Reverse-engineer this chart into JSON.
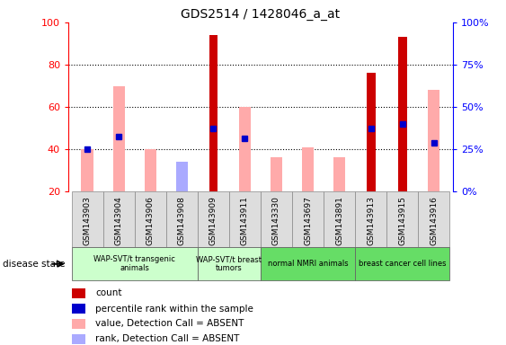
{
  "title": "GDS2514 / 1428046_a_at",
  "samples": [
    "GSM143903",
    "GSM143904",
    "GSM143906",
    "GSM143908",
    "GSM143909",
    "GSM143911",
    "GSM143330",
    "GSM143697",
    "GSM143891",
    "GSM143913",
    "GSM143915",
    "GSM143916"
  ],
  "count": [
    0,
    0,
    0,
    0,
    94,
    0,
    0,
    0,
    0,
    76,
    93,
    0
  ],
  "percentile_rank": [
    40,
    46,
    0,
    0,
    50,
    45,
    0,
    0,
    0,
    50,
    52,
    43
  ],
  "value_absent": [
    40,
    70,
    40,
    21,
    0,
    60,
    36,
    41,
    36,
    0,
    0,
    68
  ],
  "rank_absent": [
    0,
    0,
    0,
    34,
    0,
    0,
    0,
    0,
    0,
    0,
    0,
    0
  ],
  "groups": [
    {
      "label": "WAP-SVT/t transgenic\nanimals",
      "start": 0,
      "end": 4
    },
    {
      "label": "WAP-SVT/t breast\ntumors",
      "start": 4,
      "end": 6
    },
    {
      "label": "normal NMRI animals",
      "start": 6,
      "end": 9
    },
    {
      "label": "breast cancer cell lines",
      "start": 9,
      "end": 12
    }
  ],
  "group_colors": [
    "#ccffcc",
    "#ccffcc",
    "#66dd66",
    "#66dd66"
  ],
  "ylim": [
    20,
    100
  ],
  "yticks": [
    20,
    40,
    60,
    80,
    100
  ],
  "right_ytick_positions": [
    20,
    40,
    60,
    80,
    100
  ],
  "right_ytick_labels": [
    "0%",
    "25%",
    "50%",
    "75%",
    "100%"
  ],
  "color_count": "#cc0000",
  "color_percentile": "#0000cc",
  "color_value_absent": "#ffaaaa",
  "color_rank_absent": "#aaaaff",
  "disease_state_label": "disease state",
  "legend_labels": [
    "count",
    "percentile rank within the sample",
    "value, Detection Call = ABSENT",
    "rank, Detection Call = ABSENT"
  ]
}
